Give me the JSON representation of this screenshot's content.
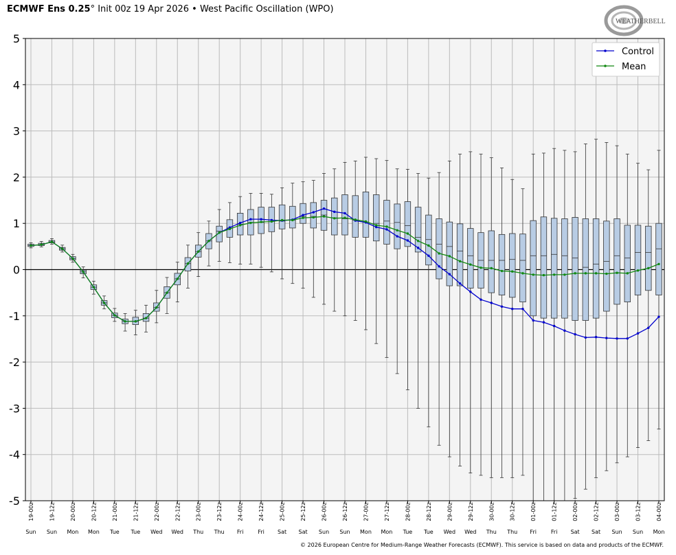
{
  "header": {
    "model": "ECMWF Ens 0.25",
    "degree": "°",
    "init": "Init 00z 19 Apr 2026",
    "bullet": "•",
    "index_name": "West Pacific Oscillation (WPO)"
  },
  "logo": {
    "text": "WEATHERBELL",
    "icon": "weatherbell-logo-icon"
  },
  "footer": {
    "copyright": "© 2026 European Centre for Medium-Range Weather Forecasts (ECMWF). This service is based on data and products of the ECMWF."
  },
  "chart_data": {
    "type": "box",
    "title": "",
    "xlabel": "",
    "ylabel": "",
    "ylim": [
      -5,
      5
    ],
    "yticks": [
      5,
      4,
      3,
      2,
      1,
      0,
      -1,
      -2,
      -3,
      -4,
      -5
    ],
    "zero_line": true,
    "grid": true,
    "legend_position": "top-right",
    "colors": {
      "control": "#0000cc",
      "mean": "#118811",
      "box_fill": "#b8cce4",
      "box_edge": "#333333",
      "plot_bg": "#f4f4f4"
    },
    "x_tick_labels": [
      "19-00z",
      "19-12z",
      "20-00z",
      "20-12z",
      "21-00z",
      "21-12z",
      "22-00z",
      "22-12z",
      "23-00z",
      "23-12z",
      "24-00z",
      "24-12z",
      "25-00z",
      "25-12z",
      "26-00z",
      "26-12z",
      "27-00z",
      "27-12z",
      "28-00z",
      "28-12z",
      "29-00z",
      "29-12z",
      "30-00z",
      "30-12z",
      "01-00z",
      "01-12z",
      "02-00z",
      "02-12z",
      "03-00z",
      "03-12z",
      "04-00z"
    ],
    "day_labels": [
      "Sun",
      "Sun",
      "Mon",
      "Mon",
      "Tue",
      "Tue",
      "Wed",
      "Wed",
      "Thu",
      "Thu",
      "Fri",
      "Fri",
      "Sat",
      "Sat",
      "Sun",
      "Sun",
      "Mon",
      "Mon",
      "Tue",
      "Tue",
      "Wed",
      "Wed",
      "Thu",
      "Thu",
      "Fri",
      "Fri",
      "Sat",
      "Sat",
      "Sun",
      "Sun",
      "Mon"
    ],
    "series": [
      {
        "name": "Control",
        "values": [
          0.52,
          0.54,
          0.6,
          0.45,
          0.24,
          -0.05,
          -0.38,
          -0.72,
          -0.99,
          -1.12,
          -1.12,
          -1.05,
          -0.82,
          -0.5,
          -0.2,
          0.13,
          0.39,
          0.62,
          0.8,
          0.91,
          1.01,
          1.09,
          1.09,
          1.07,
          1.06,
          1.08,
          1.18,
          1.24,
          1.32,
          1.25,
          1.22,
          1.06,
          1.02,
          0.92,
          0.87,
          0.72,
          0.63,
          0.47,
          0.3,
          0.07,
          -0.1,
          -0.3,
          -0.48,
          -0.65,
          -0.72,
          -0.8,
          -0.85,
          -0.85,
          -1.1,
          -1.14,
          -1.22,
          -1.32,
          -1.4,
          -1.47,
          -1.46,
          -1.48,
          -1.49,
          -1.49,
          -1.38,
          -1.26,
          -1.02
        ]
      },
      {
        "name": "Mean",
        "values": [
          0.52,
          0.54,
          0.6,
          0.45,
          0.24,
          -0.05,
          -0.38,
          -0.72,
          -0.99,
          -1.12,
          -1.12,
          -1.05,
          -0.82,
          -0.5,
          -0.2,
          0.13,
          0.39,
          0.62,
          0.8,
          0.88,
          0.96,
          1.01,
          1.03,
          1.04,
          1.07,
          1.07,
          1.12,
          1.13,
          1.15,
          1.11,
          1.12,
          1.08,
          1.04,
          0.96,
          0.93,
          0.85,
          0.78,
          0.62,
          0.52,
          0.35,
          0.29,
          0.18,
          0.11,
          0.04,
          0.03,
          -0.03,
          -0.04,
          -0.08,
          -0.11,
          -0.12,
          -0.11,
          -0.11,
          -0.08,
          -0.08,
          -0.08,
          -0.09,
          -0.07,
          -0.08,
          -0.02,
          0.03,
          0.12
        ]
      }
    ],
    "boxes": {
      "q1": [
        0.5,
        0.52,
        0.58,
        0.42,
        0.21,
        -0.09,
        -0.43,
        -0.77,
        -1.04,
        -1.17,
        -1.19,
        -1.12,
        -0.9,
        -0.62,
        -0.33,
        -0.03,
        0.27,
        0.45,
        0.6,
        0.7,
        0.75,
        0.75,
        0.78,
        0.82,
        0.88,
        0.9,
        1.0,
        0.9,
        0.85,
        0.75,
        0.75,
        0.7,
        0.7,
        0.62,
        0.55,
        0.45,
        0.5,
        0.38,
        0.1,
        -0.2,
        -0.35,
        -0.35,
        -0.4,
        -0.4,
        -0.5,
        -0.55,
        -0.6,
        -0.7,
        -1.0,
        -1.05,
        -1.05,
        -1.05,
        -1.1,
        -1.1,
        -1.05,
        -0.9,
        -0.75,
        -0.7,
        -0.55,
        -0.45,
        -0.55
      ],
      "median": [
        0.52,
        0.54,
        0.6,
        0.45,
        0.24,
        -0.05,
        -0.38,
        -0.72,
        -0.99,
        -1.12,
        -1.12,
        -1.05,
        -0.82,
        -0.5,
        -0.2,
        0.13,
        0.39,
        0.62,
        0.83,
        0.9,
        0.98,
        1.02,
        1.02,
        1.04,
        1.05,
        1.07,
        1.15,
        1.15,
        1.18,
        1.12,
        1.1,
        1.07,
        1.03,
        1.0,
        1.05,
        1.02,
        0.95,
        0.7,
        0.65,
        0.55,
        0.5,
        0.4,
        0.3,
        0.2,
        0.2,
        0.2,
        0.22,
        0.2,
        0.3,
        0.3,
        0.33,
        0.3,
        0.25,
        0.05,
        0.12,
        0.18,
        0.3,
        0.25,
        0.37,
        0.37,
        0.45
      ],
      "q3": [
        0.55,
        0.57,
        0.63,
        0.48,
        0.28,
        -0.01,
        -0.33,
        -0.67,
        -0.94,
        -1.07,
        -1.03,
        -0.95,
        -0.72,
        -0.37,
        -0.08,
        0.26,
        0.53,
        0.78,
        0.94,
        1.08,
        1.22,
        1.3,
        1.35,
        1.35,
        1.4,
        1.37,
        1.43,
        1.45,
        1.5,
        1.55,
        1.62,
        1.6,
        1.68,
        1.62,
        1.5,
        1.42,
        1.47,
        1.35,
        1.18,
        1.1,
        1.03,
        0.99,
        0.89,
        0.8,
        0.84,
        0.76,
        0.78,
        0.77,
        1.06,
        1.14,
        1.11,
        1.1,
        1.13,
        1.1,
        1.1,
        1.05,
        1.1,
        0.96,
        0.96,
        0.94,
        1.0
      ],
      "low": [
        0.47,
        0.49,
        0.55,
        0.38,
        0.16,
        -0.18,
        -0.53,
        -0.85,
        -1.12,
        -1.33,
        -1.41,
        -1.35,
        -1.15,
        -0.95,
        -0.7,
        -0.4,
        -0.15,
        0.08,
        0.18,
        0.15,
        0.12,
        0.12,
        0.05,
        -0.05,
        -0.2,
        -0.3,
        -0.4,
        -0.6,
        -0.75,
        -0.9,
        -1.0,
        -1.1,
        -1.3,
        -1.6,
        -1.9,
        -2.25,
        -2.6,
        -3.0,
        -3.4,
        -3.8,
        -4.05,
        -4.25,
        -4.4,
        -4.45,
        -4.5,
        -4.5,
        -4.5,
        -4.45,
        -5.0,
        -5.0,
        -5.0,
        -5.0,
        -4.95,
        -4.75,
        -4.5,
        -4.35,
        -4.18,
        -4.05,
        -3.85,
        -3.7,
        -3.45
      ],
      "high": [
        0.58,
        0.61,
        0.67,
        0.53,
        0.33,
        0.06,
        -0.25,
        -0.57,
        -0.84,
        -0.95,
        -0.88,
        -0.77,
        -0.45,
        -0.17,
        0.16,
        0.53,
        0.8,
        1.05,
        1.3,
        1.45,
        1.58,
        1.65,
        1.65,
        1.63,
        1.77,
        1.87,
        1.9,
        1.93,
        2.08,
        2.18,
        2.32,
        2.35,
        2.43,
        2.4,
        2.36,
        2.18,
        2.17,
        2.08,
        1.98,
        2.1,
        2.35,
        2.5,
        2.55,
        2.5,
        2.42,
        2.2,
        1.95,
        1.75,
        2.5,
        2.52,
        2.62,
        2.58,
        2.55,
        2.72,
        2.82,
        2.75,
        2.68,
        2.5,
        2.3,
        2.16,
        2.58
      ]
    }
  }
}
